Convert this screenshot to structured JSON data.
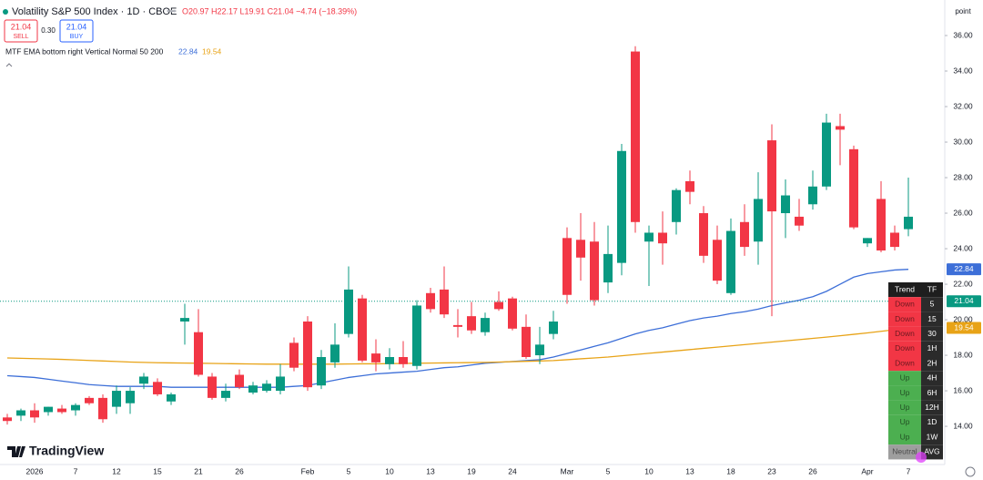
{
  "chart_data": {
    "type": "candlestick",
    "title": "Volatility S&P 500 Index · 1D · CBOE",
    "ohlc_text": "O20.97 H22.17 L19.91 C21.04 −4.74 (−18.39%)",
    "toolbar": {
      "sell_price": "21.04",
      "sell": "SELL",
      "spread": "0.30",
      "buy_price": "21.04",
      "buy": "BUY"
    },
    "indicator_label": "MTF EMA bottom right Vertical Normal 50 200",
    "y_unit": "point",
    "logo": "TradingView",
    "categories": [
      null,
      null,
      "2026",
      null,
      null,
      "7",
      null,
      null,
      "12",
      null,
      null,
      "15",
      null,
      null,
      "21",
      null,
      null,
      "26",
      null,
      null,
      null,
      null,
      "Feb",
      null,
      null,
      "5",
      null,
      null,
      "10",
      null,
      null,
      "13",
      null,
      null,
      "19",
      null,
      null,
      "24",
      null,
      null,
      null,
      "Mar",
      null,
      null,
      "5",
      null,
      null,
      "10",
      null,
      null,
      "13",
      null,
      null,
      "18",
      null,
      null,
      "23",
      null,
      null,
      "26",
      null,
      null,
      null,
      "Apr",
      null,
      null,
      "7"
    ],
    "open": [
      14.5,
      14.6,
      14.9,
      14.8,
      15.0,
      14.9,
      15.6,
      15.6,
      15.1,
      15.3,
      16.4,
      16.5,
      15.4,
      19.9,
      19.3,
      16.8,
      15.6,
      16.9,
      15.9,
      16.0,
      16.0,
      18.7,
      19.9,
      16.3,
      17.6,
      19.2,
      21.2,
      18.1,
      17.5,
      17.9,
      17.4,
      21.5,
      21.7,
      19.7,
      20.2,
      19.3,
      21.0,
      21.2,
      19.6,
      18.0,
      19.2,
      24.6,
      24.5,
      24.4,
      22.1,
      23.2,
      35.1,
      24.4,
      24.9,
      25.5,
      27.8,
      26.0,
      24.5,
      21.5,
      25.5,
      24.4,
      30.1,
      26.0,
      25.8,
      26.5,
      27.5,
      30.9,
      29.6,
      24.3,
      26.8,
      24.9,
      25.1
    ],
    "high": [
      14.7,
      15.0,
      15.3,
      15.1,
      15.2,
      15.3,
      15.7,
      15.8,
      16.3,
      16.2,
      17.0,
      16.7,
      15.9,
      20.9,
      20.6,
      17.0,
      16.4,
      17.2,
      16.5,
      16.6,
      17.5,
      19.0,
      20.2,
      18.3,
      19.8,
      23.0,
      21.4,
      18.9,
      18.4,
      18.8,
      21.1,
      21.8,
      23.0,
      20.6,
      21.0,
      20.4,
      21.6,
      21.3,
      20.3,
      19.6,
      20.5,
      25.2,
      26.0,
      25.5,
      25.3,
      29.9,
      35.4,
      25.3,
      26.1,
      27.4,
      28.4,
      26.4,
      25.3,
      25.7,
      26.5,
      28.3,
      31.0,
      27.9,
      26.8,
      28.4,
      31.6,
      31.6,
      29.8,
      24.6,
      27.8,
      25.3,
      28.0
    ],
    "low": [
      14.1,
      14.3,
      14.2,
      14.6,
      14.7,
      14.6,
      15.2,
      14.2,
      14.7,
      14.7,
      16.1,
      15.7,
      15.2,
      18.6,
      16.8,
      15.5,
      15.4,
      16.1,
      15.8,
      15.9,
      15.8,
      17.1,
      16.0,
      16.1,
      17.3,
      19.0,
      17.6,
      17.1,
      17.2,
      17.3,
      17.2,
      20.4,
      20.1,
      19.0,
      19.2,
      19.1,
      20.5,
      19.4,
      17.8,
      17.5,
      18.9,
      20.9,
      22.2,
      20.8,
      21.5,
      22.5,
      24.9,
      21.9,
      23.1,
      24.8,
      26.5,
      23.2,
      22.0,
      21.4,
      23.6,
      23.1,
      20.2,
      24.6,
      25.0,
      26.2,
      27.3,
      28.7,
      25.1,
      24.1,
      23.8,
      23.9,
      24.7
    ],
    "close": [
      14.3,
      14.9,
      14.5,
      15.1,
      14.8,
      15.2,
      15.3,
      14.4,
      16.0,
      16.0,
      16.8,
      15.8,
      15.8,
      20.1,
      16.9,
      15.6,
      16.0,
      16.2,
      16.3,
      16.4,
      16.8,
      17.3,
      16.2,
      17.9,
      18.6,
      21.7,
      17.7,
      17.6,
      17.9,
      17.5,
      20.8,
      20.6,
      20.3,
      19.6,
      19.4,
      20.1,
      20.6,
      19.5,
      17.9,
      18.6,
      19.9,
      21.4,
      23.5,
      21.1,
      23.7,
      29.5,
      25.5,
      24.9,
      24.3,
      27.3,
      27.2,
      23.6,
      22.2,
      25.0,
      24.1,
      26.8,
      26.1,
      27.0,
      25.3,
      27.5,
      31.1,
      30.7,
      25.2,
      24.6,
      23.9,
      24.1,
      25.8
    ],
    "up_color": "#089981",
    "down_color": "#f23645",
    "series": [
      {
        "color": "#3d6fd8",
        "values": [
          16.85,
          16.8,
          16.75,
          16.65,
          16.55,
          16.45,
          16.35,
          16.3,
          16.25,
          16.25,
          16.25,
          16.25,
          16.2,
          16.2,
          16.2,
          16.2,
          16.2,
          16.2,
          16.2,
          16.2,
          16.2,
          16.25,
          16.3,
          16.45,
          16.6,
          16.75,
          16.85,
          16.95,
          17.0,
          17.05,
          17.1,
          17.2,
          17.3,
          17.35,
          17.45,
          17.55,
          17.6,
          17.65,
          17.7,
          17.75,
          17.9,
          18.1,
          18.3,
          18.5,
          18.7,
          18.95,
          19.2,
          19.4,
          19.55,
          19.75,
          19.95,
          20.1,
          20.2,
          20.35,
          20.45,
          20.6,
          20.8,
          20.95,
          21.1,
          21.3,
          21.6,
          22.0,
          22.4,
          22.6,
          22.7,
          22.8,
          22.84
        ]
      },
      {
        "color": "#e8a317",
        "values": [
          17.85,
          17.83,
          17.81,
          17.79,
          17.77,
          17.74,
          17.71,
          17.68,
          17.65,
          17.62,
          17.6,
          17.58,
          17.57,
          17.56,
          17.55,
          17.54,
          17.53,
          17.52,
          17.51,
          17.5,
          17.5,
          17.5,
          17.5,
          17.5,
          17.5,
          17.51,
          17.52,
          17.52,
          17.53,
          17.54,
          17.55,
          17.56,
          17.57,
          17.58,
          17.59,
          17.6,
          17.62,
          17.64,
          17.66,
          17.68,
          17.7,
          17.75,
          17.8,
          17.85,
          17.9,
          17.97,
          18.04,
          18.11,
          18.18,
          18.25,
          18.32,
          18.39,
          18.46,
          18.53,
          18.6,
          18.67,
          18.74,
          18.81,
          18.88,
          18.95,
          19.02,
          19.1,
          19.18,
          19.26,
          19.35,
          19.44,
          19.54
        ]
      }
    ],
    "last_price": 21.04,
    "last_price_color": "#089981",
    "ylim": [
      11.85,
      38.0
    ],
    "yticks": [
      {
        "value": 14,
        "label": "14.00"
      },
      {
        "value": 16,
        "label": "16.00"
      },
      {
        "value": 18,
        "label": "18.00"
      },
      {
        "value": 20,
        "label": "20.00"
      },
      {
        "value": 22,
        "label": "22.00"
      },
      {
        "value": 24,
        "label": "24.00"
      },
      {
        "value": 26,
        "label": "26.00"
      },
      {
        "value": 28,
        "label": "28.00"
      },
      {
        "value": 30,
        "label": "30.00"
      },
      {
        "value": 32,
        "label": "32.00"
      },
      {
        "value": 34,
        "label": "34.00"
      },
      {
        "value": 36,
        "label": "36.00"
      }
    ],
    "grid": false,
    "trend_table": {
      "header": [
        "Trend",
        "TF"
      ],
      "rows": [
        {
          "trend": "Down",
          "tf": "5",
          "color": "#f23645"
        },
        {
          "trend": "Down",
          "tf": "15",
          "color": "#f23645"
        },
        {
          "trend": "Down",
          "tf": "30",
          "color": "#f23645"
        },
        {
          "trend": "Down",
          "tf": "1H",
          "color": "#f23645"
        },
        {
          "trend": "Down",
          "tf": "2H",
          "color": "#f23645"
        },
        {
          "trend": "Up",
          "tf": "4H",
          "color": "#4caf50"
        },
        {
          "trend": "Up",
          "tf": "6H",
          "color": "#4caf50"
        },
        {
          "trend": "Up",
          "tf": "12H",
          "color": "#4caf50"
        },
        {
          "trend": "Up",
          "tf": "1D",
          "color": "#4caf50"
        },
        {
          "trend": "Up",
          "tf": "1W",
          "color": "#4caf50"
        },
        {
          "trend": "Neutral",
          "tf": "AVG",
          "color": "#9e9e9e"
        }
      ]
    }
  }
}
